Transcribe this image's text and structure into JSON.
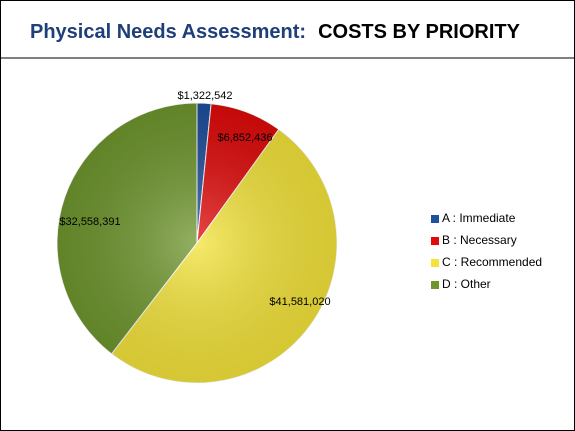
{
  "chart_data": {
    "type": "pie",
    "title_parts": [
      "Physical Needs Assessment:",
      "COSTS BY PRIORITY"
    ],
    "categories": [
      "A : Immediate",
      "B : Necessary",
      "C : Recommended",
      "D : Other"
    ],
    "values": [
      1322542,
      6852436,
      41581020,
      32558391
    ],
    "value_labels": [
      "$1,322,542",
      "$6,852,436",
      "$41,581,020",
      "$32,558,391"
    ],
    "colors": [
      "#1f4f9e",
      "#e00a0a",
      "#f3e33a",
      "#6f962e"
    ],
    "legend": "right"
  }
}
